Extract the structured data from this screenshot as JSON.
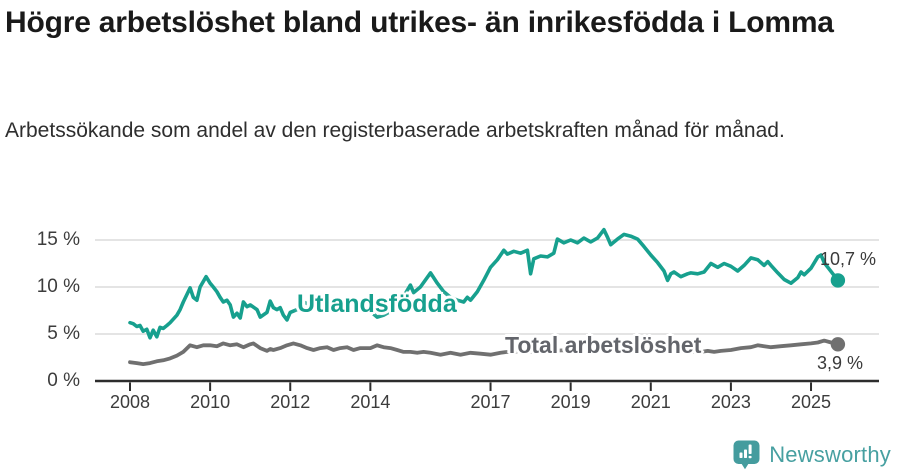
{
  "header": {
    "title": "Högre arbetslöshet bland utrikes- än inrikesfödda i Lomma",
    "subtitle": "Arbetssökande som andel av den registerbaserade arbetskraften månad för månad."
  },
  "footer": {
    "brand": "Newsworthy",
    "icon": "newsworthy-speech-bubble-bar-chart-icon",
    "brand_color": "#47a0a1"
  },
  "colors": {
    "accent_teal": "#17a08e",
    "line_gray": "#707070",
    "axis": "#2d2d2d",
    "gridline": "#dbdbdb"
  },
  "chart_data": {
    "type": "line",
    "title": "Högre arbetslöshet bland utrikes- än inrikesfödda i Lomma",
    "subtitle": "Arbetssökande som andel av den registerbaserade arbetskraften månad för månad.",
    "xlabel": "",
    "ylabel": "",
    "unit": "%",
    "grid": "horizontal",
    "x_range": [
      2007.13,
      2026.72
    ],
    "y_range": [
      0,
      16.5
    ],
    "x_ticks": [
      {
        "value": 2008,
        "label": "2008"
      },
      {
        "value": 2010,
        "label": "2010"
      },
      {
        "value": 2012,
        "label": "2012"
      },
      {
        "value": 2014,
        "label": "2014"
      },
      {
        "value": 2017,
        "label": "2017"
      },
      {
        "value": 2019,
        "label": "2019"
      },
      {
        "value": 2021,
        "label": "2021"
      },
      {
        "value": 2023,
        "label": "2023"
      },
      {
        "value": 2025,
        "label": "2025"
      }
    ],
    "y_ticks": [
      {
        "value": 0,
        "label": "0 %"
      },
      {
        "value": 5,
        "label": "5 %"
      },
      {
        "value": 10,
        "label": "10 %"
      },
      {
        "value": 15,
        "label": "15 %"
      }
    ],
    "series": [
      {
        "name": "Utlandsfödda",
        "color": "#17a08e",
        "end_value": 10.7,
        "end_label": "10,7 %",
        "points": [
          [
            2008.0,
            6.2
          ],
          [
            2008.08,
            6.1
          ],
          [
            2008.17,
            5.8
          ],
          [
            2008.25,
            5.9
          ],
          [
            2008.33,
            5.3
          ],
          [
            2008.42,
            5.5
          ],
          [
            2008.5,
            4.6
          ],
          [
            2008.58,
            5.4
          ],
          [
            2008.67,
            4.7
          ],
          [
            2008.75,
            5.7
          ],
          [
            2008.83,
            5.6
          ],
          [
            2008.92,
            5.9
          ],
          [
            2009.0,
            6.2
          ],
          [
            2009.17,
            7.0
          ],
          [
            2009.25,
            7.6
          ],
          [
            2009.33,
            8.4
          ],
          [
            2009.5,
            9.9
          ],
          [
            2009.58,
            8.9
          ],
          [
            2009.67,
            8.6
          ],
          [
            2009.75,
            10.0
          ],
          [
            2009.9,
            11.1
          ],
          [
            2010.0,
            10.4
          ],
          [
            2010.08,
            10.0
          ],
          [
            2010.17,
            9.5
          ],
          [
            2010.25,
            8.9
          ],
          [
            2010.33,
            8.4
          ],
          [
            2010.42,
            8.6
          ],
          [
            2010.5,
            8.1
          ],
          [
            2010.58,
            6.8
          ],
          [
            2010.67,
            7.2
          ],
          [
            2010.75,
            6.7
          ],
          [
            2010.83,
            8.4
          ],
          [
            2010.92,
            7.9
          ],
          [
            2011.0,
            8.1
          ],
          [
            2011.17,
            7.6
          ],
          [
            2011.25,
            6.8
          ],
          [
            2011.42,
            7.3
          ],
          [
            2011.5,
            8.5
          ],
          [
            2011.58,
            7.8
          ],
          [
            2011.67,
            7.6
          ],
          [
            2011.75,
            7.8
          ],
          [
            2011.83,
            7.0
          ],
          [
            2011.92,
            6.5
          ],
          [
            2012.0,
            7.3
          ],
          [
            2012.17,
            7.6
          ],
          [
            2012.33,
            8.4
          ],
          [
            2012.5,
            8.1
          ],
          [
            2012.67,
            8.3
          ],
          [
            2012.83,
            8.0
          ],
          [
            2013.0,
            8.3
          ],
          [
            2013.17,
            8.5
          ],
          [
            2013.33,
            8.2
          ],
          [
            2013.5,
            8.4
          ],
          [
            2013.67,
            7.9
          ],
          [
            2013.83,
            7.7
          ],
          [
            2014.0,
            7.4
          ],
          [
            2014.17,
            6.8
          ],
          [
            2014.33,
            7.0
          ],
          [
            2014.5,
            7.4
          ],
          [
            2014.67,
            7.9
          ],
          [
            2014.83,
            9.0
          ],
          [
            2015.0,
            10.2
          ],
          [
            2015.08,
            9.4
          ],
          [
            2015.25,
            10.0
          ],
          [
            2015.5,
            11.5
          ],
          [
            2015.67,
            10.4
          ],
          [
            2015.83,
            9.5
          ],
          [
            2016.0,
            8.9
          ],
          [
            2016.17,
            8.6
          ],
          [
            2016.33,
            8.4
          ],
          [
            2016.42,
            8.9
          ],
          [
            2016.5,
            8.6
          ],
          [
            2016.67,
            9.5
          ],
          [
            2016.83,
            10.7
          ],
          [
            2017.0,
            12.1
          ],
          [
            2017.17,
            12.9
          ],
          [
            2017.33,
            13.9
          ],
          [
            2017.42,
            13.5
          ],
          [
            2017.58,
            13.8
          ],
          [
            2017.75,
            13.6
          ],
          [
            2017.92,
            13.9
          ],
          [
            2018.0,
            11.4
          ],
          [
            2018.08,
            13.0
          ],
          [
            2018.25,
            13.3
          ],
          [
            2018.42,
            13.2
          ],
          [
            2018.58,
            13.6
          ],
          [
            2018.67,
            15.1
          ],
          [
            2018.83,
            14.7
          ],
          [
            2019.0,
            15.0
          ],
          [
            2019.17,
            14.7
          ],
          [
            2019.33,
            15.2
          ],
          [
            2019.5,
            14.8
          ],
          [
            2019.67,
            15.2
          ],
          [
            2019.83,
            16.1
          ],
          [
            2019.92,
            15.3
          ],
          [
            2020.0,
            14.5
          ],
          [
            2020.17,
            15.1
          ],
          [
            2020.33,
            15.6
          ],
          [
            2020.5,
            15.4
          ],
          [
            2020.67,
            15.1
          ],
          [
            2020.83,
            14.3
          ],
          [
            2021.0,
            13.4
          ],
          [
            2021.17,
            12.6
          ],
          [
            2021.33,
            11.7
          ],
          [
            2021.42,
            10.7
          ],
          [
            2021.5,
            11.4
          ],
          [
            2021.58,
            11.6
          ],
          [
            2021.75,
            11.1
          ],
          [
            2021.92,
            11.4
          ],
          [
            2022.0,
            11.5
          ],
          [
            2022.17,
            11.4
          ],
          [
            2022.33,
            11.6
          ],
          [
            2022.5,
            12.5
          ],
          [
            2022.67,
            12.1
          ],
          [
            2022.83,
            12.5
          ],
          [
            2023.0,
            12.2
          ],
          [
            2023.17,
            11.7
          ],
          [
            2023.33,
            12.3
          ],
          [
            2023.5,
            13.1
          ],
          [
            2023.67,
            12.9
          ],
          [
            2023.83,
            12.3
          ],
          [
            2023.92,
            12.7
          ],
          [
            2024.0,
            12.3
          ],
          [
            2024.17,
            11.5
          ],
          [
            2024.33,
            10.8
          ],
          [
            2024.5,
            10.4
          ],
          [
            2024.67,
            11.0
          ],
          [
            2024.75,
            11.6
          ],
          [
            2024.83,
            11.3
          ],
          [
            2025.0,
            12.0
          ],
          [
            2025.17,
            13.2
          ],
          [
            2025.25,
            13.4
          ],
          [
            2025.33,
            12.6
          ],
          [
            2025.42,
            12.1
          ],
          [
            2025.58,
            11.2
          ],
          [
            2025.67,
            10.7
          ]
        ]
      },
      {
        "name": "Total arbetslöshet",
        "color": "#707070",
        "end_value": 3.9,
        "end_label": "3,9 %",
        "points": [
          [
            2008.0,
            2.0
          ],
          [
            2008.17,
            1.9
          ],
          [
            2008.33,
            1.8
          ],
          [
            2008.5,
            1.9
          ],
          [
            2008.67,
            2.1
          ],
          [
            2008.83,
            2.2
          ],
          [
            2009.0,
            2.4
          ],
          [
            2009.17,
            2.7
          ],
          [
            2009.33,
            3.1
          ],
          [
            2009.5,
            3.8
          ],
          [
            2009.67,
            3.6
          ],
          [
            2009.83,
            3.8
          ],
          [
            2010.0,
            3.8
          ],
          [
            2010.17,
            3.7
          ],
          [
            2010.33,
            4.0
          ],
          [
            2010.5,
            3.8
          ],
          [
            2010.67,
            3.9
          ],
          [
            2010.83,
            3.6
          ],
          [
            2011.0,
            3.9
          ],
          [
            2011.08,
            4.0
          ],
          [
            2011.25,
            3.5
          ],
          [
            2011.42,
            3.2
          ],
          [
            2011.5,
            3.4
          ],
          [
            2011.58,
            3.3
          ],
          [
            2011.75,
            3.5
          ],
          [
            2011.92,
            3.8
          ],
          [
            2012.08,
            4.0
          ],
          [
            2012.25,
            3.8
          ],
          [
            2012.42,
            3.5
          ],
          [
            2012.58,
            3.3
          ],
          [
            2012.75,
            3.5
          ],
          [
            2012.92,
            3.6
          ],
          [
            2013.08,
            3.3
          ],
          [
            2013.25,
            3.5
          ],
          [
            2013.42,
            3.6
          ],
          [
            2013.58,
            3.3
          ],
          [
            2013.75,
            3.5
          ],
          [
            2014.0,
            3.5
          ],
          [
            2014.17,
            3.8
          ],
          [
            2014.33,
            3.6
          ],
          [
            2014.5,
            3.5
          ],
          [
            2014.67,
            3.3
          ],
          [
            2014.83,
            3.1
          ],
          [
            2015.0,
            3.1
          ],
          [
            2015.17,
            3.0
          ],
          [
            2015.33,
            3.1
          ],
          [
            2015.5,
            3.0
          ],
          [
            2015.75,
            2.8
          ],
          [
            2016.0,
            3.0
          ],
          [
            2016.25,
            2.8
          ],
          [
            2016.5,
            3.0
          ],
          [
            2016.75,
            2.9
          ],
          [
            2017.0,
            2.8
          ],
          [
            2017.25,
            3.0
          ],
          [
            2017.42,
            3.1
          ],
          [
            2017.58,
            3.1
          ],
          [
            2017.75,
            3.2
          ],
          [
            2018.0,
            3.1
          ],
          [
            2018.5,
            3.2
          ],
          [
            2019.0,
            3.3
          ],
          [
            2019.5,
            3.2
          ],
          [
            2020.0,
            3.4
          ],
          [
            2020.5,
            3.5
          ],
          [
            2021.0,
            3.4
          ],
          [
            2021.5,
            3.2
          ],
          [
            2022.0,
            3.1
          ],
          [
            2022.25,
            3.1
          ],
          [
            2022.42,
            3.2
          ],
          [
            2022.58,
            3.1
          ],
          [
            2022.75,
            3.2
          ],
          [
            2023.0,
            3.3
          ],
          [
            2023.25,
            3.5
          ],
          [
            2023.5,
            3.6
          ],
          [
            2023.67,
            3.8
          ],
          [
            2023.83,
            3.7
          ],
          [
            2024.0,
            3.6
          ],
          [
            2024.25,
            3.7
          ],
          [
            2024.5,
            3.8
          ],
          [
            2024.75,
            3.9
          ],
          [
            2025.0,
            4.0
          ],
          [
            2025.17,
            4.1
          ],
          [
            2025.33,
            4.3
          ],
          [
            2025.5,
            4.1
          ],
          [
            2025.67,
            3.9
          ]
        ]
      }
    ]
  }
}
